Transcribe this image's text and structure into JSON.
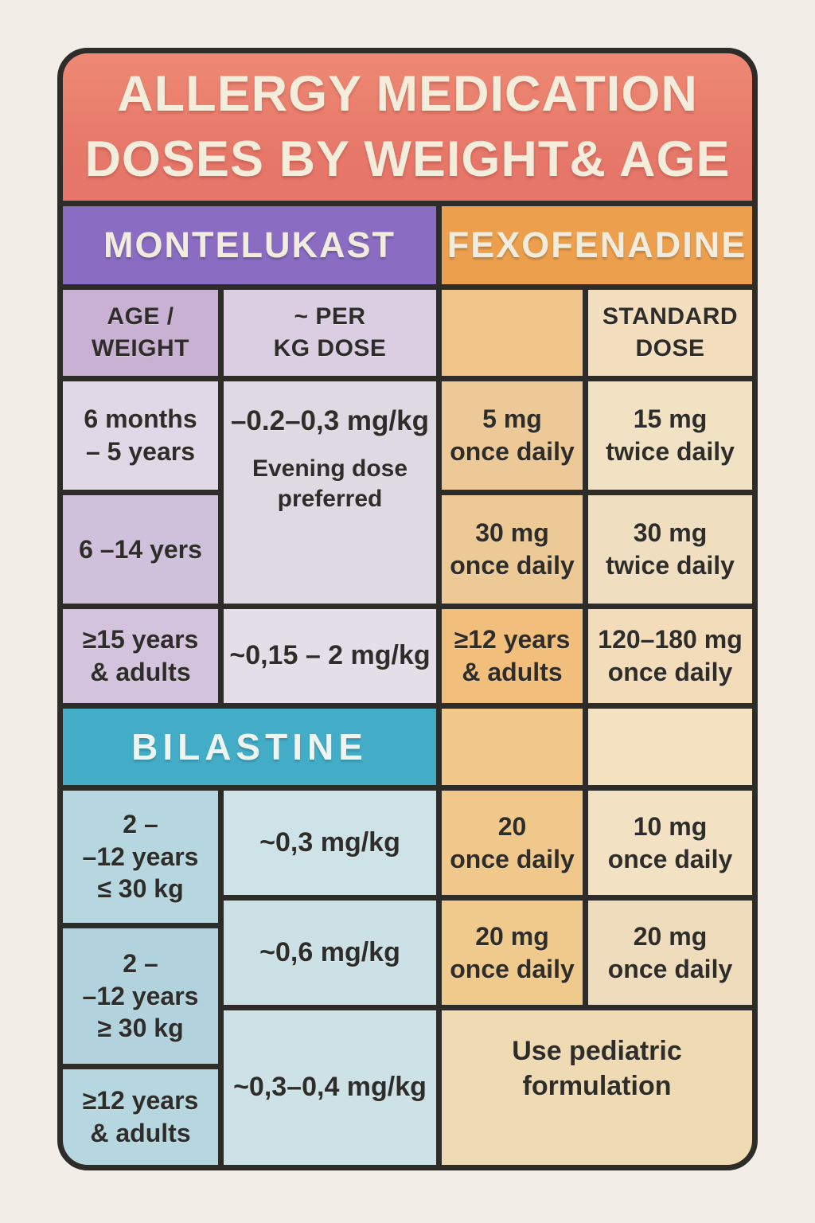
{
  "title": "ALLERGY MEDICATION\nDOSES BY WEIGHT& AGE",
  "sections": {
    "montelukast_label": "MONTELUKAST",
    "fexofenadine_label": "FEXOFENADINE",
    "bilastine_label": "BILASTINE"
  },
  "column_headers": {
    "age_weight": "AGE /\nWEIGHT",
    "per_kg_dose": "~ PER\nKG DOSE",
    "standard_dose": "STANDARD\nDOSE"
  },
  "montelukast": {
    "age_rows": [
      "6 months\n– 5 years",
      "6 –14 yers",
      "≥15 years\n& adults"
    ],
    "merged_dose": "–0.2–0,3 mg/kg",
    "merged_note": "Evening dose\npreferred",
    "adult_dose": "~0,15 – 2 mg/kg"
  },
  "fexofenadine": {
    "rows": [
      {
        "dose1": "5 mg\nonce daily",
        "dose2": "15 mg\ntwice daily"
      },
      {
        "dose1": "30 mg\nonce daily",
        "dose2": "30 mg\ntwice daily"
      },
      {
        "dose1": "≥12 years\n& adults",
        "dose2": "120–180 mg\nonce daily"
      },
      {
        "dose1": "20\nonce daily",
        "dose2": "10 mg\nonce daily"
      },
      {
        "dose1": "20 mg\nonce daily",
        "dose2": "20 mg\nonce daily"
      }
    ],
    "pediatric_note": "Use pediatric\nformulation"
  },
  "bilastine": {
    "age_rows": [
      "2 –\n–12 years\n≤ 30 kg",
      "2 –\n–12 years\n≥ 30 kg",
      "≥12 years\n& adults"
    ],
    "dose_rows": [
      "~0,3 mg/kg",
      "~0,6 mg/kg",
      "~0,3–0,4 mg/kg"
    ]
  },
  "colors": {
    "page_background": "#f2eee7",
    "grid_line": "#2e2c28",
    "title_banner": "#e87d6c",
    "title_text": "#f4eddc",
    "montelukast_purple": "#8a6dc2",
    "fexofenadine_orange": "#eca04e",
    "bilastine_teal": "#43adc7",
    "text_dark": "#2f2d2a"
  }
}
